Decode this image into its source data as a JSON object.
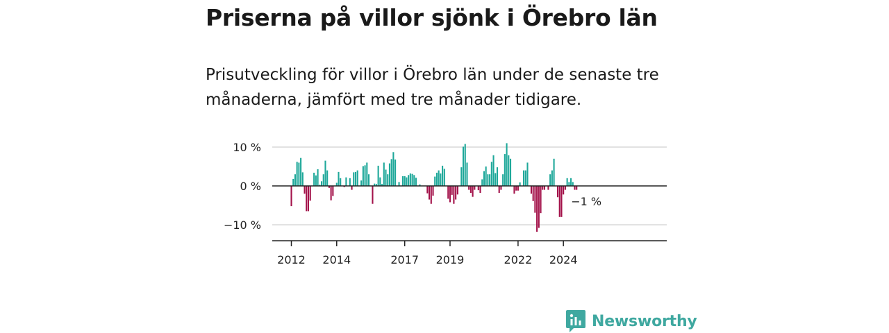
{
  "header": {
    "title": "Priserna på villor sjönk i Örebro län",
    "subtitle": "Prisutveckling för villor i Örebro län under de senaste tre månaderna, jämfört med tre månader tidigare."
  },
  "logo": {
    "text": "Newsworthy"
  },
  "colors": {
    "positive": "#1fa89a",
    "negative": "#a3124a",
    "grid": "#d9d9d9",
    "axis": "#222222",
    "brand": "#3fa8a0"
  },
  "chart_data": {
    "type": "bar",
    "x_start": "2012-01",
    "x_interval": "month",
    "ylabel": "",
    "ylim": [
      -14,
      10.5
    ],
    "yticks": [
      {
        "value": 10,
        "label": "10 %"
      },
      {
        "value": 0,
        "label": "0 %"
      },
      {
        "value": -10,
        "label": "−10 %"
      }
    ],
    "xticks": [
      {
        "value": "2012-01",
        "label": "2012"
      },
      {
        "value": "2014-01",
        "label": "2014"
      },
      {
        "value": "2017-01",
        "label": "2017"
      },
      {
        "value": "2019-01",
        "label": "2019"
      },
      {
        "value": "2022-01",
        "label": "2022"
      },
      {
        "value": "2024-01",
        "label": "2024"
      }
    ],
    "last_value_label": "−1 %",
    "values": [
      -5.2,
      1.8,
      3.0,
      6.2,
      6.0,
      7.2,
      3.5,
      -2.0,
      -6.5,
      -6.5,
      -3.8,
      0.0,
      3.4,
      2.7,
      4.3,
      0.3,
      1.2,
      3.0,
      6.5,
      4.0,
      -0.5,
      -3.7,
      -2.6,
      0.0,
      0.8,
      3.6,
      2.0,
      0.0,
      -0.3,
      2.2,
      0.0,
      2.0,
      -1.0,
      3.5,
      3.6,
      4.0,
      0.0,
      1.4,
      5.1,
      5.3,
      6.0,
      3.0,
      0.0,
      -4.6,
      0.6,
      0.5,
      5.2,
      2.2,
      0.5,
      6.0,
      4.2,
      3.0,
      5.8,
      6.9,
      8.7,
      6.8,
      0.0,
      1.0,
      0.0,
      2.5,
      2.5,
      2.2,
      2.8,
      3.2,
      3.1,
      2.8,
      2.1,
      0.0,
      0.4,
      0.0,
      0.0,
      0.0,
      -1.9,
      -3.5,
      -4.6,
      -2.5,
      2.4,
      3.4,
      4.0,
      3.2,
      5.2,
      4.4,
      0.0,
      -3.3,
      -4.2,
      -2.3,
      -4.6,
      -3.5,
      -2.2,
      0.0,
      4.8,
      10.1,
      10.8,
      6.0,
      -1.0,
      -1.8,
      -2.8,
      -1.0,
      0.0,
      -1.1,
      -1.8,
      1.7,
      3.8,
      5.0,
      3.0,
      3.0,
      6.2,
      7.9,
      3.3,
      4.8,
      -1.8,
      -1.0,
      3.0,
      8.2,
      11.0,
      7.9,
      7.0,
      0.0,
      -2.0,
      -1.2,
      -1.2,
      0.9,
      0.0,
      4.0,
      4.0,
      6.0,
      0.0,
      -2.0,
      -3.9,
      -6.9,
      -11.8,
      -10.8,
      -7.0,
      -1.0,
      -1.0,
      0.0,
      -1.0,
      3.0,
      4.0,
      7.0,
      0.0,
      -2.9,
      -8.0,
      -8.0,
      -2.2,
      -1.0,
      2.0,
      1.0,
      2.0,
      1.0,
      -1.0,
      -1.0
    ]
  }
}
